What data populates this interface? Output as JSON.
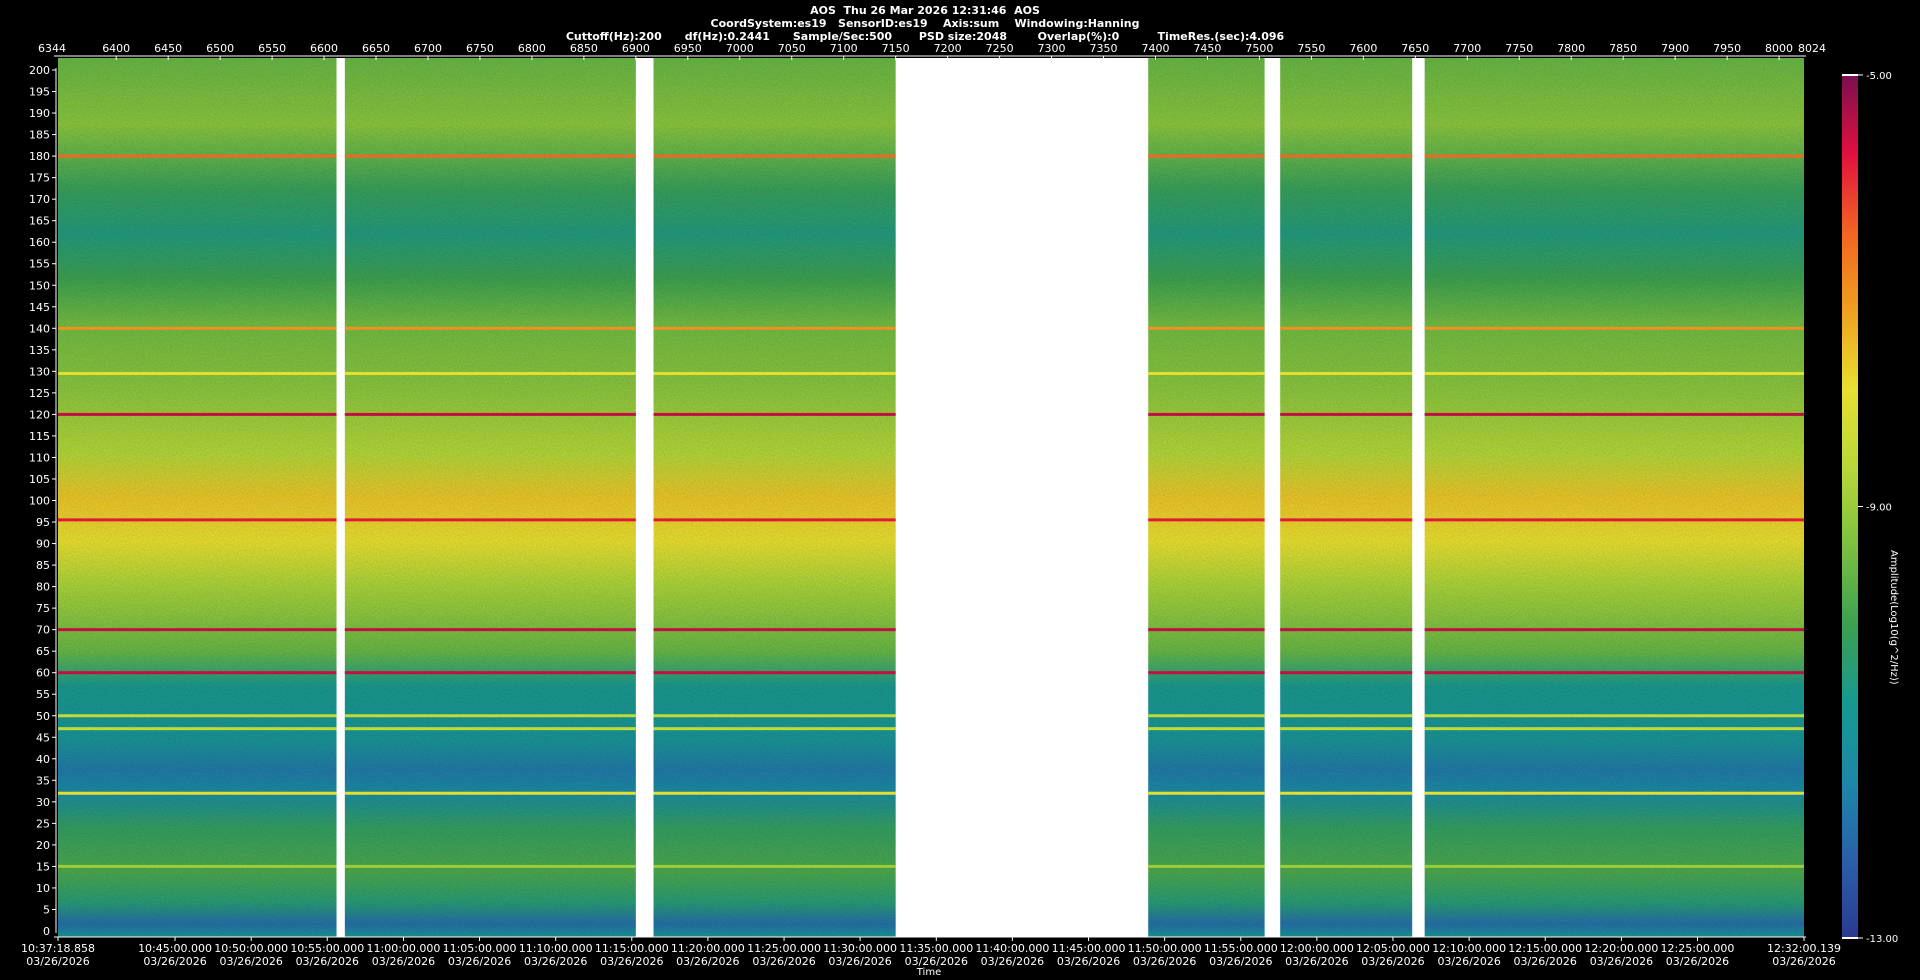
{
  "header": {
    "line1": "AOS  Thu 26 Mar 2026 12:31:46  AOS",
    "line2": "CoordSystem:es19   SensorID:es19    Axis:sum    Windowing:Hanning",
    "line3": "Cuttoff(Hz):200      df(Hz):0.2441      Sample/Sec:500       PSD size:2048        Overlap(%):0          TimeRes.(sec):4.096"
  },
  "colors": {
    "background": "#000000",
    "gap": "#ffffff",
    "colormap": [
      "#7a1050",
      "#e0103e",
      "#f26422",
      "#f0a020",
      "#e8e030",
      "#b8d838",
      "#7cc040",
      "#3ca050",
      "#189890",
      "#1c88a8",
      "#2a60a8",
      "#2a3a90"
    ]
  },
  "chart_data": {
    "type": "heatmap",
    "title": "AOS  Thu 26 Mar 2026 12:31:46  AOS",
    "xlabel": "Time",
    "ylabel": "",
    "colorbar_label": "Amplitude(Log10(g^2/Hz))",
    "colorbar_ticks": [
      "-5.00",
      "-9.00",
      "-13.00"
    ],
    "colorbar_range": [
      -13,
      -5
    ],
    "ylim": [
      0,
      200
    ],
    "yticks": [
      5,
      10,
      15,
      20,
      25,
      30,
      35,
      40,
      45,
      50,
      55,
      60,
      65,
      70,
      75,
      80,
      85,
      90,
      95,
      100,
      105,
      110,
      115,
      120,
      125,
      130,
      135,
      140,
      145,
      150,
      155,
      160,
      165,
      170,
      175,
      180,
      185,
      190,
      195,
      200
    ],
    "ytick_labels": [
      "5",
      "10",
      "15",
      "20",
      "25",
      "30",
      "35",
      "40",
      "45",
      "50",
      "55",
      "60",
      "65",
      "70",
      "75",
      "80",
      "85",
      "90",
      "95",
      "100",
      "105",
      "110",
      "115",
      "120",
      "125",
      "130",
      "135",
      "140",
      "145",
      "150",
      "155",
      "160",
      "165",
      "170",
      "175",
      "180",
      "185",
      "190",
      "195",
      "200"
    ],
    "y_zero_label": "0",
    "sample_range": [
      6344,
      8024
    ],
    "top_ticks": [
      6400,
      6450,
      6500,
      6550,
      6600,
      6650,
      6700,
      6750,
      6800,
      6850,
      6900,
      6950,
      7000,
      7050,
      7100,
      7150,
      7200,
      7250,
      7300,
      7350,
      7400,
      7450,
      7500,
      7550,
      7600,
      7650,
      7700,
      7750,
      7800,
      7850,
      7900,
      7950,
      8000
    ],
    "top_tick_labels": [
      "6400",
      "6450",
      "6500",
      "6550",
      "6600",
      "6650",
      "6700",
      "6750",
      "6800",
      "6850",
      "6900",
      "6950",
      "7000",
      "7050",
      "7100",
      "7150",
      "7200",
      "7250",
      "7300",
      "7350",
      "7400",
      "7450",
      "7500",
      "7550",
      "7600",
      "7650",
      "7700",
      "7750",
      "7800",
      "7850",
      "7900",
      "7950",
      "8000"
    ],
    "top_start_label": "6344",
    "top_end_label": "8024",
    "time_range": [
      "10:37:18.858",
      "12:32:00.139"
    ],
    "time_ticks": [
      {
        "time": "10:37:18.858",
        "date": "03/26/2026",
        "sample": 6344
      },
      {
        "time": "10:45:00.000",
        "date": "03/26/2026",
        "sample": 6456.6
      },
      {
        "time": "10:50:00.000",
        "date": "03/26/2026",
        "sample": 6529.9
      },
      {
        "time": "10:55:00.000",
        "date": "03/26/2026",
        "sample": 6603.1
      },
      {
        "time": "11:00:00.000",
        "date": "03/26/2026",
        "sample": 6676.4
      },
      {
        "time": "11:05:00.000",
        "date": "03/26/2026",
        "sample": 6749.6
      },
      {
        "time": "11:10:00.000",
        "date": "03/26/2026",
        "sample": 6822.9
      },
      {
        "time": "11:15:00.000",
        "date": "03/26/2026",
        "sample": 6896.1
      },
      {
        "time": "11:20:00.000",
        "date": "03/26/2026",
        "sample": 6969.3
      },
      {
        "time": "11:25:00.000",
        "date": "03/26/2026",
        "sample": 7042.6
      },
      {
        "time": "11:30:00.000",
        "date": "03/26/2026",
        "sample": 7115.8
      },
      {
        "time": "11:35:00.000",
        "date": "03/26/2026",
        "sample": 7189.1
      },
      {
        "time": "11:40:00.000",
        "date": "03/26/2026",
        "sample": 7262.3
      },
      {
        "time": "11:45:00.000",
        "date": "03/26/2026",
        "sample": 7335.6
      },
      {
        "time": "11:50:00.000",
        "date": "03/26/2026",
        "sample": 7408.8
      },
      {
        "time": "11:55:00.000",
        "date": "03/26/2026",
        "sample": 7482.1
      },
      {
        "time": "12:00:00.000",
        "date": "03/26/2026",
        "sample": 7555.3
      },
      {
        "time": "12:05:00.000",
        "date": "03/26/2026",
        "sample": 7628.5
      },
      {
        "time": "12:10:00.000",
        "date": "03/26/2026",
        "sample": 7701.8
      },
      {
        "time": "12:15:00.000",
        "date": "03/26/2026",
        "sample": 7775.0
      },
      {
        "time": "12:20:00.000",
        "date": "03/26/2026",
        "sample": 7848.3
      },
      {
        "time": "12:25:00.000",
        "date": "03/26/2026",
        "sample": 7921.5
      },
      {
        "time": "12:32:00.139",
        "date": "03/26/2026",
        "sample": 8024
      }
    ],
    "data_segments": [
      [
        6344,
        6612
      ],
      [
        6620,
        6900
      ],
      [
        6917,
        7150
      ],
      [
        7393,
        7505
      ],
      [
        7520,
        7647
      ],
      [
        7659,
        8024
      ]
    ],
    "horizontal_lines": [
      {
        "freq": 180,
        "level": -6.5
      },
      {
        "freq": 140,
        "level": -7.0
      },
      {
        "freq": 129.5,
        "level": -8.0
      },
      {
        "freq": 120,
        "level": -5.5
      },
      {
        "freq": 95.5,
        "level": -5.8
      },
      {
        "freq": 70,
        "level": -5.5
      },
      {
        "freq": 60,
        "level": -5.5
      },
      {
        "freq": 50,
        "level": -8.5
      },
      {
        "freq": 47,
        "level": -8.5
      },
      {
        "freq": 32,
        "level": -8.0
      },
      {
        "freq": 15,
        "level": -9.0
      }
    ],
    "band_profile": [
      {
        "freq": 200,
        "level": -9.6
      },
      {
        "freq": 185,
        "level": -9.2
      },
      {
        "freq": 170,
        "level": -10.2
      },
      {
        "freq": 160,
        "level": -10.6
      },
      {
        "freq": 150,
        "level": -10.1
      },
      {
        "freq": 140,
        "level": -9.5
      },
      {
        "freq": 125,
        "level": -9.2
      },
      {
        "freq": 110,
        "level": -8.7
      },
      {
        "freq": 100,
        "level": -7.6
      },
      {
        "freq": 90,
        "level": -7.9
      },
      {
        "freq": 80,
        "level": -8.8
      },
      {
        "freq": 65,
        "level": -9.6
      },
      {
        "freq": 57,
        "level": -10.8
      },
      {
        "freq": 45,
        "level": -11.0
      },
      {
        "freq": 38,
        "level": -11.8
      },
      {
        "freq": 33,
        "level": -11.4
      },
      {
        "freq": 25,
        "level": -10.3
      },
      {
        "freq": 15,
        "level": -9.9
      },
      {
        "freq": 8,
        "level": -10.5
      },
      {
        "freq": 3,
        "level": -12.0
      },
      {
        "freq": 0,
        "level": -11.0
      }
    ],
    "grid": false
  }
}
